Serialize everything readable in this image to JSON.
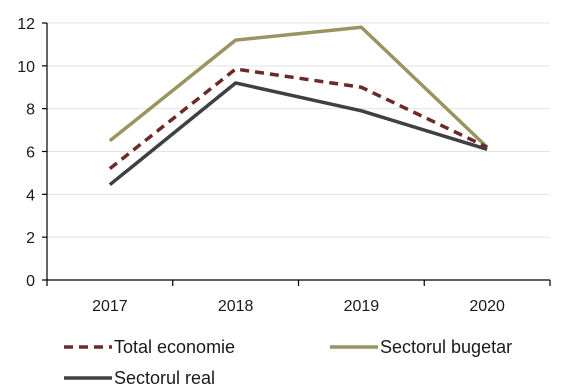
{
  "chart_data": {
    "type": "line",
    "title": "",
    "xlabel": "",
    "ylabel": "",
    "categories": [
      "2017",
      "2018",
      "2019",
      "2020"
    ],
    "ylim": [
      0,
      12
    ],
    "yticks": [
      0,
      2,
      4,
      6,
      8,
      10,
      12
    ],
    "grid": true,
    "legend_position": "bottom",
    "series": [
      {
        "name": "Total economie",
        "values": [
          5.2,
          9.85,
          9.0,
          6.2
        ],
        "color": "#6b2a2a",
        "style": "dashed"
      },
      {
        "name": "Sectorul bugetar",
        "values": [
          6.5,
          11.2,
          11.8,
          6.2
        ],
        "color": "#9a9463",
        "style": "solid"
      },
      {
        "name": "Sectorul real",
        "values": [
          4.45,
          9.2,
          7.9,
          6.1
        ],
        "color": "#404040",
        "style": "solid"
      }
    ]
  }
}
